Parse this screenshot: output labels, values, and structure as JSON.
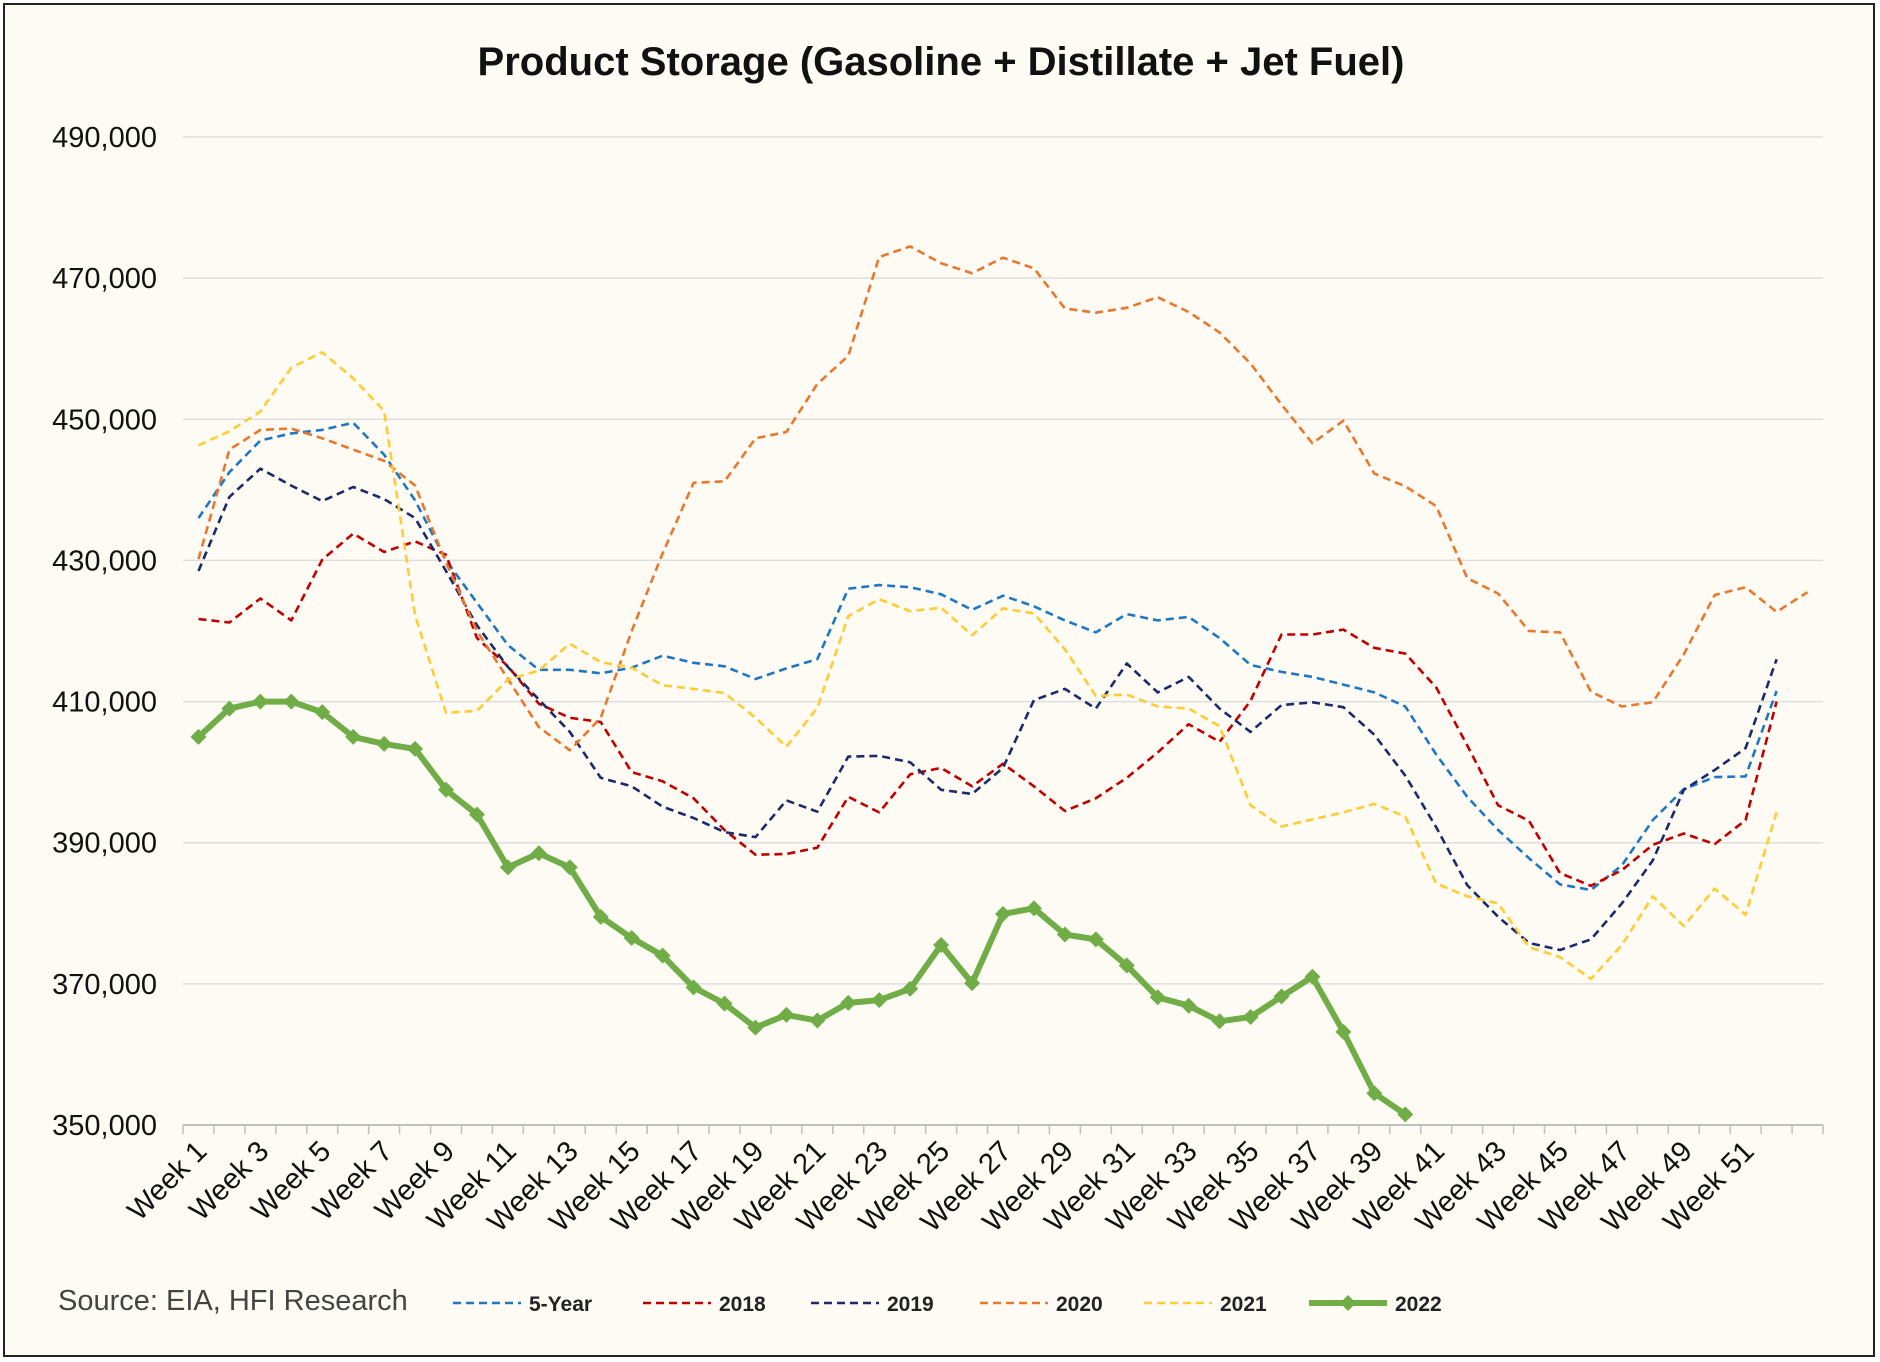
{
  "chart_data": {
    "type": "line",
    "title": "Product Storage (Gasoline + Distillate + Jet Fuel)",
    "xlabel": "",
    "ylabel": "",
    "source": "Source: EIA, HFI Research",
    "ylim": [
      350000,
      490000
    ],
    "yticks": [
      "350,000",
      "370,000",
      "390,000",
      "410,000",
      "430,000",
      "450,000",
      "470,000",
      "490,000"
    ],
    "xticks_shown": [
      "Week 1",
      "Week 3",
      "Week 5",
      "Week 7",
      "Week 9",
      "Week 11",
      "Week 13",
      "Week 15",
      "Week 17",
      "Week 19",
      "Week 21",
      "Week 23",
      "Week 25",
      "Week 27",
      "Week 29",
      "Week 31",
      "Week 33",
      "Week 35",
      "Week 37",
      "Week 39",
      "Week 41",
      "Week 43",
      "Week 45",
      "Week 47",
      "Week 49",
      "Week 51"
    ],
    "x_count": 53,
    "grid": "horizontal",
    "legend_position": "bottom",
    "series": [
      {
        "name": "5-Year",
        "color": "#1f77c4",
        "style": "dashed",
        "values": [
          436000,
          442500,
          447000,
          448000,
          448500,
          449500,
          445000,
          438500,
          430000,
          424000,
          418000,
          414500,
          414500,
          414000,
          414800,
          416500,
          415500,
          415000,
          413200,
          414700,
          416000,
          426000,
          426500,
          426200,
          425200,
          423000,
          425000,
          423500,
          421500,
          419800,
          422400,
          421500,
          422000,
          419000,
          415200,
          414200,
          413500,
          412400,
          411300,
          409300,
          402500,
          396500,
          391800,
          387800,
          384100,
          383300,
          386800,
          393200,
          397600,
          399300,
          399400,
          411500
        ]
      },
      {
        "name": "2018",
        "color": "#c00000",
        "style": "dashed",
        "values": [
          421700,
          421200,
          424600,
          421500,
          430100,
          433800,
          431200,
          432700,
          430800,
          419000,
          415000,
          409700,
          407700,
          407100,
          400000,
          398700,
          396300,
          391800,
          388300,
          388400,
          389300,
          396500,
          394300,
          399700,
          400600,
          398000,
          401200,
          398000,
          394500,
          396300,
          399200,
          402800,
          406800,
          404300,
          410100,
          419500,
          419500,
          420200,
          417600,
          416800,
          412000,
          403800,
          395300,
          393100,
          385700,
          383900,
          386100,
          389700,
          391300,
          389800,
          393200,
          410000
        ]
      },
      {
        "name": "2019",
        "color": "#1a2a6c",
        "style": "dashed",
        "values": [
          428500,
          439000,
          443000,
          440600,
          438400,
          440400,
          438700,
          436000,
          428500,
          420800,
          414900,
          410300,
          405700,
          399200,
          398000,
          395100,
          393500,
          391500,
          390800,
          396000,
          394400,
          402200,
          402300,
          401400,
          397500,
          396900,
          400600,
          410200,
          411800,
          409000,
          415400,
          411300,
          413500,
          409000,
          405700,
          409500,
          409900,
          409200,
          405300,
          399500,
          392200,
          384000,
          379500,
          375800,
          374800,
          376300,
          381400,
          387500,
          397500,
          400300,
          403400,
          416000
        ]
      },
      {
        "name": "2020",
        "color": "#e8782c",
        "style": "dashed",
        "values": [
          430200,
          445700,
          448500,
          448700,
          447300,
          445700,
          444100,
          440600,
          429700,
          420000,
          413200,
          406400,
          403100,
          407700,
          420000,
          431000,
          441000,
          441200,
          447300,
          448200,
          455000,
          459000,
          473000,
          474500,
          472100,
          470700,
          472900,
          471400,
          465700,
          465100,
          465800,
          467300,
          465200,
          462300,
          457900,
          452100,
          446600,
          449800,
          442300,
          440500,
          437700,
          427500,
          425300,
          420000,
          419800,
          411400,
          409300,
          409900,
          416700,
          425100,
          426200,
          422700,
          425500
        ]
      },
      {
        "name": "2021",
        "color": "#ffcc33",
        "style": "dashed",
        "values": [
          446300,
          448300,
          451100,
          457300,
          459500,
          455800,
          451200,
          422200,
          408400,
          408700,
          413100,
          414400,
          418200,
          415600,
          414800,
          412300,
          411800,
          411200,
          407700,
          403600,
          409100,
          422100,
          424500,
          422800,
          423300,
          419400,
          423200,
          422500,
          417400,
          410800,
          411000,
          409300,
          409000,
          406500,
          395300,
          392300,
          393300,
          394300,
          395500,
          393700,
          384200,
          382400,
          381400,
          375200,
          373800,
          370700,
          375500,
          382400,
          378200,
          383500,
          379800,
          394300
        ]
      },
      {
        "name": "2022",
        "color": "#70ad47",
        "style": "solid-markers",
        "values": [
          405000,
          409000,
          410000,
          410000,
          408500,
          405000,
          404000,
          403300,
          397500,
          394000,
          386500,
          388500,
          386500,
          379500,
          376500,
          374000,
          369500,
          367200,
          363800,
          365600,
          364800,
          367300,
          367700,
          369300,
          375500,
          370100,
          379900,
          380700,
          377000,
          376300,
          372600,
          368100,
          366900,
          364700,
          365300,
          368200,
          371000,
          363200,
          354500,
          351500
        ]
      }
    ]
  }
}
